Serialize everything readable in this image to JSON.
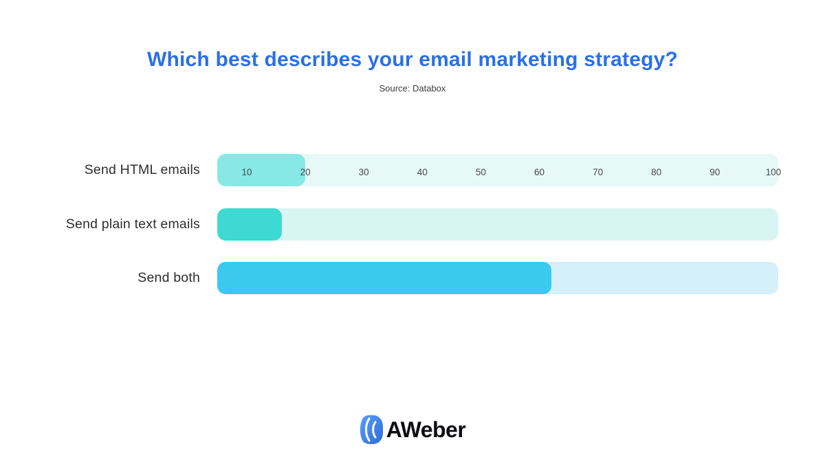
{
  "header": {
    "title": "Which best describes your email marketing strategy?",
    "title_color": "#2B6FE6",
    "source": "Source: Databox"
  },
  "chart_data": {
    "type": "bar",
    "orientation": "horizontal",
    "title": "Which best describes your email marketing strategy?",
    "source": "Source: Databox",
    "categories": [
      "Send HTML emails",
      "Send plain text emails",
      "Send both"
    ],
    "values": [
      20,
      16,
      62
    ],
    "unit": "percent",
    "xlim": [
      0,
      100
    ],
    "axis_ticks": [
      10,
      20,
      30,
      40,
      50,
      60,
      70,
      80,
      90,
      100
    ],
    "grid": false,
    "legend": false,
    "bar_colors": [
      "#87E8E6",
      "#3EDAD2",
      "#3BC9F0"
    ],
    "track_colors": [
      "#E6F9F7",
      "#D8F5F3",
      "#D5F0FB"
    ]
  },
  "footer": {
    "logo_text": "AWeber",
    "logo_blue_light": "#5AA0F8",
    "logo_blue_dark": "#2E6BDC"
  }
}
